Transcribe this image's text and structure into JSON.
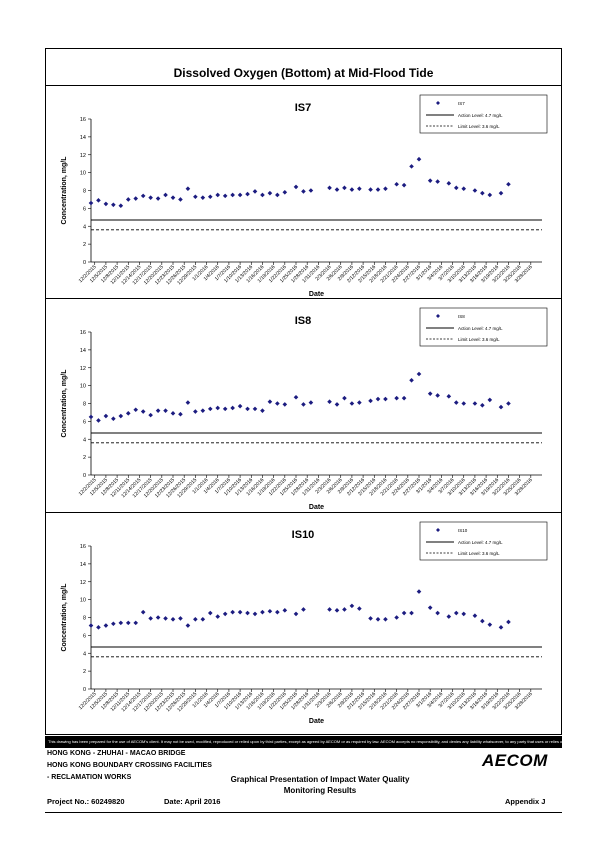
{
  "page": {
    "title": "Dissolved Oxygen (Bottom) at Mid-Flood Tide",
    "disclaimer": "This drawing has been prepared for the use of AECOM's client. It may not be used, modified, reproduced or relied upon by third parties, except as agreed by AECOM or as required by law. AECOM accepts no responsibility, and denies any liability whatsoever, to any party that uses or relies on this drawing without AECOM's express written consent."
  },
  "footer": {
    "line1": "HONG KONG - ZHUHAI - MACAO BRIDGE",
    "line2": "HONG KONG BOUNDARY CROSSING FACILITIES",
    "line3": "- RECLAMATION WORKS",
    "center_line1": "Graphical Presentation of Impact Water Quality",
    "center_line2": "Monitoring Results",
    "project": "Project No.: 60249820",
    "date": "Date: April 2016",
    "appendix": "Appendix J",
    "logo": "AECOM"
  },
  "chart_data": [
    {
      "type": "scatter",
      "title": "IS7",
      "xlabel": "Date",
      "ylabel": "Concentration, mg/L",
      "ylim": [
        0,
        16
      ],
      "yticks": [
        0,
        2,
        4,
        6,
        8,
        10,
        12,
        14,
        16
      ],
      "x_ticks": [
        "12/2/2015",
        "12/5/2015",
        "12/8/2015",
        "12/11/2015",
        "12/14/2015",
        "12/17/2015",
        "12/20/2015",
        "12/23/2015",
        "12/26/2015",
        "12/29/2015",
        "1/1/2016",
        "1/4/2016",
        "1/7/2016",
        "1/10/2016",
        "1/13/2016",
        "1/16/2016",
        "1/19/2016",
        "1/22/2016",
        "1/25/2016",
        "1/28/2016",
        "1/31/2016",
        "2/3/2016",
        "2/6/2016",
        "2/9/2016",
        "2/12/2016",
        "2/15/2016",
        "2/18/2016",
        "2/21/2016",
        "2/24/2016",
        "2/27/2016",
        "3/1/2016",
        "3/4/2016",
        "3/7/2016",
        "3/10/2016",
        "3/13/2016",
        "3/16/2016",
        "3/19/2016",
        "3/22/2016",
        "3/25/2016",
        "3/28/2016"
      ],
      "x_range": [
        "2015-12-01",
        "2016-03-31"
      ],
      "legend": {
        "position": "top-right",
        "series_label": "IS7",
        "action_label": "Action Level: 4.7 mg/L",
        "limit_label": "Limit Level: 3.6 mg/L"
      },
      "action_level": 4.7,
      "limit_level": 3.6,
      "series": [
        {
          "name": "IS7",
          "color": "#1c1c80",
          "points": [
            [
              "2015-12-01",
              6.6
            ],
            [
              "2015-12-03",
              6.9
            ],
            [
              "2015-12-05",
              6.5
            ],
            [
              "2015-12-07",
              6.4
            ],
            [
              "2015-12-09",
              6.3
            ],
            [
              "2015-12-11",
              7.0
            ],
            [
              "2015-12-13",
              7.1
            ],
            [
              "2015-12-15",
              7.4
            ],
            [
              "2015-12-17",
              7.2
            ],
            [
              "2015-12-19",
              7.1
            ],
            [
              "2015-12-21",
              7.5
            ],
            [
              "2015-12-23",
              7.2
            ],
            [
              "2015-12-25",
              7.0
            ],
            [
              "2015-12-27",
              8.2
            ],
            [
              "2015-12-29",
              7.3
            ],
            [
              "2015-12-31",
              7.2
            ],
            [
              "2016-01-02",
              7.3
            ],
            [
              "2016-01-04",
              7.5
            ],
            [
              "2016-01-06",
              7.4
            ],
            [
              "2016-01-08",
              7.5
            ],
            [
              "2016-01-10",
              7.5
            ],
            [
              "2016-01-12",
              7.6
            ],
            [
              "2016-01-14",
              7.9
            ],
            [
              "2016-01-16",
              7.5
            ],
            [
              "2016-01-18",
              7.7
            ],
            [
              "2016-01-20",
              7.5
            ],
            [
              "2016-01-22",
              7.8
            ],
            [
              "2016-01-25",
              8.4
            ],
            [
              "2016-01-27",
              7.9
            ],
            [
              "2016-01-29",
              8.0
            ],
            [
              "2016-02-03",
              8.3
            ],
            [
              "2016-02-05",
              8.1
            ],
            [
              "2016-02-07",
              8.3
            ],
            [
              "2016-02-09",
              8.1
            ],
            [
              "2016-02-11",
              8.2
            ],
            [
              "2016-02-14",
              8.1
            ],
            [
              "2016-02-16",
              8.1
            ],
            [
              "2016-02-18",
              8.2
            ],
            [
              "2016-02-21",
              8.7
            ],
            [
              "2016-02-23",
              8.6
            ],
            [
              "2016-02-25",
              10.7
            ],
            [
              "2016-02-27",
              11.5
            ],
            [
              "2016-03-01",
              9.1
            ],
            [
              "2016-03-03",
              9.0
            ],
            [
              "2016-03-06",
              8.8
            ],
            [
              "2016-03-08",
              8.3
            ],
            [
              "2016-03-10",
              8.2
            ],
            [
              "2016-03-13",
              8.0
            ],
            [
              "2016-03-15",
              7.7
            ],
            [
              "2016-03-17",
              7.5
            ],
            [
              "2016-03-20",
              7.7
            ],
            [
              "2016-03-22",
              8.7
            ]
          ]
        }
      ]
    },
    {
      "type": "scatter",
      "title": "IS8",
      "xlabel": "Date",
      "ylabel": "Concentration, mg/L",
      "ylim": [
        0,
        16
      ],
      "yticks": [
        0,
        2,
        4,
        6,
        8,
        10,
        12,
        14,
        16
      ],
      "x_ticks": [
        "12/2/2015",
        "12/5/2015",
        "12/8/2015",
        "12/11/2015",
        "12/14/2015",
        "12/17/2015",
        "12/20/2015",
        "12/23/2015",
        "12/26/2015",
        "12/29/2015",
        "1/1/2016",
        "1/4/2016",
        "1/7/2016",
        "1/10/2016",
        "1/13/2016",
        "1/16/2016",
        "1/19/2016",
        "1/22/2016",
        "1/25/2016",
        "1/28/2016",
        "1/31/2016",
        "2/3/2016",
        "2/6/2016",
        "2/9/2016",
        "2/12/2016",
        "2/15/2016",
        "2/18/2016",
        "2/21/2016",
        "2/24/2016",
        "2/27/2016",
        "3/1/2016",
        "3/4/2016",
        "3/7/2016",
        "3/10/2016",
        "3/13/2016",
        "3/16/2016",
        "3/19/2016",
        "3/22/2016",
        "3/25/2016",
        "3/28/2016"
      ],
      "x_range": [
        "2015-12-01",
        "2016-03-31"
      ],
      "legend": {
        "position": "top-right",
        "series_label": "IS8",
        "action_label": "Action Level: 4.7 mg/L",
        "limit_label": "Limit Level: 3.6 mg/L"
      },
      "action_level": 4.7,
      "limit_level": 3.6,
      "series": [
        {
          "name": "IS8",
          "color": "#1c1c80",
          "points": [
            [
              "2015-12-01",
              6.5
            ],
            [
              "2015-12-03",
              6.1
            ],
            [
              "2015-12-05",
              6.6
            ],
            [
              "2015-12-07",
              6.3
            ],
            [
              "2015-12-09",
              6.6
            ],
            [
              "2015-12-11",
              6.9
            ],
            [
              "2015-12-13",
              7.3
            ],
            [
              "2015-12-15",
              7.1
            ],
            [
              "2015-12-17",
              6.7
            ],
            [
              "2015-12-19",
              7.2
            ],
            [
              "2015-12-21",
              7.2
            ],
            [
              "2015-12-23",
              6.9
            ],
            [
              "2015-12-25",
              6.8
            ],
            [
              "2015-12-27",
              8.1
            ],
            [
              "2015-12-29",
              7.1
            ],
            [
              "2015-12-31",
              7.2
            ],
            [
              "2016-01-02",
              7.4
            ],
            [
              "2016-01-04",
              7.5
            ],
            [
              "2016-01-06",
              7.4
            ],
            [
              "2016-01-08",
              7.5
            ],
            [
              "2016-01-10",
              7.7
            ],
            [
              "2016-01-12",
              7.4
            ],
            [
              "2016-01-14",
              7.4
            ],
            [
              "2016-01-16",
              7.2
            ],
            [
              "2016-01-18",
              8.2
            ],
            [
              "2016-01-20",
              8.0
            ],
            [
              "2016-01-22",
              7.9
            ],
            [
              "2016-01-25",
              8.7
            ],
            [
              "2016-01-27",
              7.9
            ],
            [
              "2016-01-29",
              8.1
            ],
            [
              "2016-02-03",
              8.2
            ],
            [
              "2016-02-05",
              7.9
            ],
            [
              "2016-02-07",
              8.6
            ],
            [
              "2016-02-09",
              8.0
            ],
            [
              "2016-02-11",
              8.1
            ],
            [
              "2016-02-14",
              8.3
            ],
            [
              "2016-02-16",
              8.5
            ],
            [
              "2016-02-18",
              8.5
            ],
            [
              "2016-02-21",
              8.6
            ],
            [
              "2016-02-23",
              8.6
            ],
            [
              "2016-02-25",
              10.6
            ],
            [
              "2016-02-27",
              11.3
            ],
            [
              "2016-03-01",
              9.1
            ],
            [
              "2016-03-03",
              8.9
            ],
            [
              "2016-03-06",
              8.8
            ],
            [
              "2016-03-08",
              8.1
            ],
            [
              "2016-03-10",
              8.0
            ],
            [
              "2016-03-13",
              8.0
            ],
            [
              "2016-03-15",
              7.8
            ],
            [
              "2016-03-17",
              8.4
            ],
            [
              "2016-03-20",
              7.6
            ],
            [
              "2016-03-22",
              8.0
            ]
          ]
        }
      ]
    },
    {
      "type": "scatter",
      "title": "IS10",
      "xlabel": "Date",
      "ylabel": "Concentration, mg/L",
      "ylim": [
        0,
        16
      ],
      "yticks": [
        0,
        2,
        4,
        6,
        8,
        10,
        12,
        14,
        16
      ],
      "x_ticks": [
        "12/2/2015",
        "12/5/2015",
        "12/8/2015",
        "12/11/2015",
        "12/14/2015",
        "12/17/2015",
        "12/20/2015",
        "12/23/2015",
        "12/26/2015",
        "12/29/2015",
        "1/1/2016",
        "1/4/2016",
        "1/7/2016",
        "1/10/2016",
        "1/13/2016",
        "1/16/2016",
        "1/19/2016",
        "1/22/2016",
        "1/25/2016",
        "1/28/2016",
        "1/31/2016",
        "2/3/2016",
        "2/6/2016",
        "2/9/2016",
        "2/12/2016",
        "2/15/2016",
        "2/18/2016",
        "2/21/2016",
        "2/24/2016",
        "2/27/2016",
        "3/1/2016",
        "3/4/2016",
        "3/7/2016",
        "3/10/2016",
        "3/13/2016",
        "3/16/2016",
        "3/19/2016",
        "3/22/2016",
        "3/25/2016",
        "3/28/2016"
      ],
      "x_range": [
        "2015-12-01",
        "2016-03-31"
      ],
      "legend": {
        "position": "top-right",
        "series_label": "IS10",
        "action_label": "Action Level: 4.7 mg/L",
        "limit_label": "Limit Level: 3.6 mg/L"
      },
      "action_level": 4.7,
      "limit_level": 3.6,
      "series": [
        {
          "name": "IS10",
          "color": "#1c1c80",
          "points": [
            [
              "2015-12-01",
              7.1
            ],
            [
              "2015-12-03",
              6.9
            ],
            [
              "2015-12-05",
              7.1
            ],
            [
              "2015-12-07",
              7.3
            ],
            [
              "2015-12-09",
              7.4
            ],
            [
              "2015-12-11",
              7.4
            ],
            [
              "2015-12-13",
              7.4
            ],
            [
              "2015-12-15",
              8.6
            ],
            [
              "2015-12-17",
              7.9
            ],
            [
              "2015-12-19",
              8.0
            ],
            [
              "2015-12-21",
              7.9
            ],
            [
              "2015-12-23",
              7.8
            ],
            [
              "2015-12-25",
              7.9
            ],
            [
              "2015-12-27",
              7.1
            ],
            [
              "2015-12-29",
              7.8
            ],
            [
              "2015-12-31",
              7.8
            ],
            [
              "2016-01-02",
              8.5
            ],
            [
              "2016-01-04",
              8.1
            ],
            [
              "2016-01-06",
              8.4
            ],
            [
              "2016-01-08",
              8.6
            ],
            [
              "2016-01-10",
              8.6
            ],
            [
              "2016-01-12",
              8.5
            ],
            [
              "2016-01-14",
              8.4
            ],
            [
              "2016-01-16",
              8.6
            ],
            [
              "2016-01-18",
              8.7
            ],
            [
              "2016-01-20",
              8.6
            ],
            [
              "2016-01-22",
              8.8
            ],
            [
              "2016-01-25",
              8.4
            ],
            [
              "2016-01-27",
              8.9
            ],
            [
              "2016-02-03",
              8.9
            ],
            [
              "2016-02-05",
              8.8
            ],
            [
              "2016-02-07",
              8.9
            ],
            [
              "2016-02-09",
              9.3
            ],
            [
              "2016-02-11",
              9.0
            ],
            [
              "2016-02-14",
              7.9
            ],
            [
              "2016-02-16",
              7.8
            ],
            [
              "2016-02-18",
              7.8
            ],
            [
              "2016-02-21",
              8.0
            ],
            [
              "2016-02-23",
              8.5
            ],
            [
              "2016-02-25",
              8.5
            ],
            [
              "2016-02-27",
              10.9
            ],
            [
              "2016-03-01",
              9.1
            ],
            [
              "2016-03-03",
              8.5
            ],
            [
              "2016-03-06",
              8.1
            ],
            [
              "2016-03-08",
              8.5
            ],
            [
              "2016-03-10",
              8.4
            ],
            [
              "2016-03-13",
              8.2
            ],
            [
              "2016-03-15",
              7.6
            ],
            [
              "2016-03-17",
              7.2
            ],
            [
              "2016-03-20",
              6.9
            ],
            [
              "2016-03-22",
              7.5
            ]
          ]
        }
      ]
    }
  ]
}
